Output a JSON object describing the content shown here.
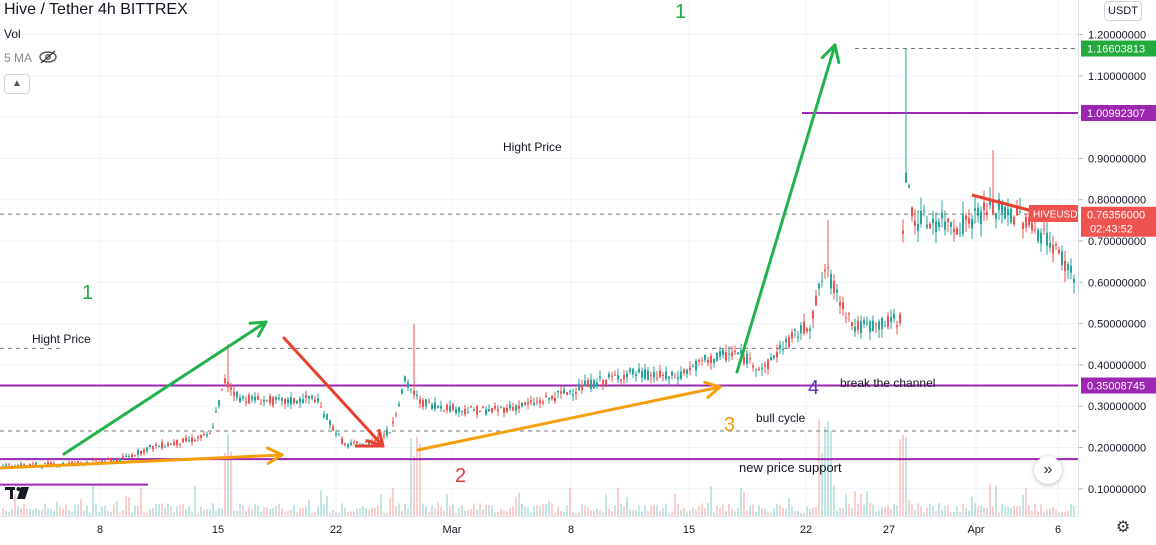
{
  "legend": {
    "title": "Hive / Tether   4h   BITTREX",
    "vol": "Vol",
    "ma": "5 MA"
  },
  "currency_button": "USDT",
  "colors": {
    "up": "#26a69a",
    "down": "#ef5350",
    "green_arrow": "#22b24c",
    "red_arrow": "#e8402e",
    "orange_arrow": "#f59e0b",
    "purple": "#9c27b0",
    "label_green": "#22ab3c",
    "label_red": "#e53935",
    "label_orange": "#f39c12",
    "label_purple": "#5e35b1"
  },
  "chart_data": {
    "type": "candlestick",
    "symbol": "HIVEUSDT",
    "timeframe": "4h",
    "exchange": "BITTREX",
    "ylim": [
      0.05,
      1.25
    ],
    "y_ticks": [
      "0.10000000",
      "0.20000000",
      "0.30000000",
      "0.40000000",
      "0.50000000",
      "0.60000000",
      "0.70000000",
      "0.80000000",
      "0.90000000",
      "1.00000000",
      "1.10000000",
      "1.20000000"
    ],
    "x_ticks": [
      "8",
      "15",
      "22",
      "Mar",
      "8",
      "15",
      "22",
      "27",
      "Apr",
      "6"
    ],
    "price_profile": [
      {
        "t": 0,
        "p": 0.155
      },
      {
        "t": 4,
        "p": 0.16
      },
      {
        "t": 8,
        "p": 0.17
      },
      {
        "t": 10,
        "p": 0.2
      },
      {
        "t": 13,
        "p": 0.22
      },
      {
        "t": 14,
        "p": 0.23
      },
      {
        "t": 15,
        "p": 0.36
      },
      {
        "t": 16,
        "p": 0.32
      },
      {
        "t": 19,
        "p": 0.31
      },
      {
        "t": 21,
        "p": 0.32
      },
      {
        "t": 22,
        "p": 0.26
      },
      {
        "t": 23,
        "p": 0.205
      },
      {
        "t": 24.5,
        "p": 0.21
      },
      {
        "t": 26,
        "p": 0.24
      },
      {
        "t": 27,
        "p": 0.36
      },
      {
        "t": 28,
        "p": 0.31
      },
      {
        "t": 31,
        "p": 0.29
      },
      {
        "t": 33,
        "p": 0.29
      },
      {
        "t": 36,
        "p": 0.31
      },
      {
        "t": 39,
        "p": 0.35
      },
      {
        "t": 42,
        "p": 0.38
      },
      {
        "t": 45,
        "p": 0.37
      },
      {
        "t": 47,
        "p": 0.41
      },
      {
        "t": 49,
        "p": 0.43
      },
      {
        "t": 51,
        "p": 0.39
      },
      {
        "t": 52,
        "p": 0.44
      },
      {
        "t": 54,
        "p": 0.5
      },
      {
        "t": 55,
        "p": 0.63
      },
      {
        "t": 56,
        "p": 0.56
      },
      {
        "t": 57,
        "p": 0.49
      },
      {
        "t": 59,
        "p": 0.5
      },
      {
        "t": 60,
        "p": 0.51
      },
      {
        "t": 60.3,
        "p": 0.86
      },
      {
        "t": 61,
        "p": 0.75
      },
      {
        "t": 64,
        "p": 0.74
      },
      {
        "t": 66,
        "p": 0.78
      },
      {
        "t": 68,
        "p": 0.76
      },
      {
        "t": 70,
        "p": 0.7
      },
      {
        "t": 71.5,
        "p": 0.62
      },
      {
        "t": 72.5,
        "p": 0.5
      }
    ],
    "spikes": [
      {
        "t": 15.2,
        "p": 0.45
      },
      {
        "t": 27.6,
        "p": 0.5
      },
      {
        "t": 46.5,
        "p": 0.5
      },
      {
        "t": 55.2,
        "p": 0.75
      },
      {
        "t": 60.4,
        "p": 1.166
      },
      {
        "t": 66.2,
        "p": 0.92
      }
    ],
    "price_labels": [
      {
        "value": 1.16603813,
        "text": "1.16603813",
        "style": "green"
      },
      {
        "value": 1.00992307,
        "text": "1.00992307",
        "style": "purple"
      },
      {
        "value": 0.76356,
        "text": "0.76356000",
        "style": "red",
        "sub": "02:43:52",
        "tag": "HIVEUSDT"
      },
      {
        "value": 0.35008745,
        "text": "0.35008745",
        "style": "purple"
      }
    ]
  },
  "annotations": {
    "label_1_top": "1",
    "label_1_left": "1",
    "label_2": "2",
    "label_3": "3",
    "label_4": "4",
    "hight_price_left": "Hight Price",
    "hight_price_top": "Hight Price",
    "break_channel": "break the channel",
    "bull_cycle": "bull cycle",
    "new_support": "new price support"
  },
  "icons": {
    "eye": "eye-hidden-icon",
    "collapse": "chevron-up-icon",
    "scroll": "double-chevron-right-icon",
    "logo": "tradingview-logo-icon",
    "settings": "gear-icon"
  }
}
